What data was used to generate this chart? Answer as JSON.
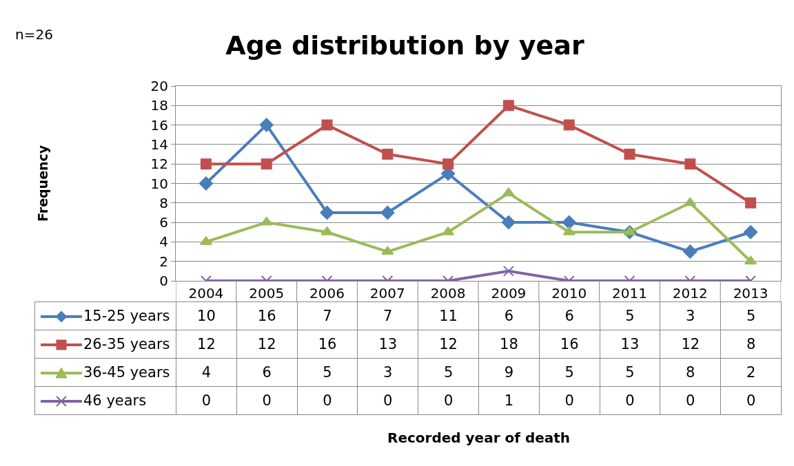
{
  "chart_data": {
    "type": "line",
    "title": "Age distribution by year",
    "annotations": [
      "n=26",
      "Frequency",
      "Recorded year of death"
    ],
    "categories": [
      "2004",
      "2005",
      "2006",
      "2007",
      "2008",
      "2009",
      "2010",
      "2011",
      "2012",
      "2013"
    ],
    "series": [
      {
        "name": "15-25 years",
        "color": "#4a7ebb",
        "marker": "diamond",
        "values": [
          10,
          16,
          7,
          7,
          11,
          6,
          6,
          5,
          3,
          5
        ]
      },
      {
        "name": "26-35 years",
        "color": "#c0504d",
        "marker": "square",
        "values": [
          12,
          12,
          16,
          13,
          12,
          18,
          16,
          13,
          12,
          8
        ]
      },
      {
        "name": "36-45 years",
        "color": "#9bbb59",
        "marker": "triangle",
        "values": [
          4,
          6,
          5,
          3,
          5,
          9,
          5,
          5,
          8,
          2
        ]
      },
      {
        "name": "46 years",
        "color": "#8064a2",
        "marker": "cross",
        "values": [
          0,
          0,
          0,
          0,
          0,
          1,
          0,
          0,
          0,
          0
        ]
      }
    ],
    "ylim": [
      0,
      20
    ],
    "yticks": [
      0,
      2,
      4,
      6,
      8,
      10,
      12,
      14,
      16,
      18,
      20
    ],
    "grid": "y",
    "legend": "bottom left",
    "data_labels": true,
    "line_style": "solid"
  }
}
